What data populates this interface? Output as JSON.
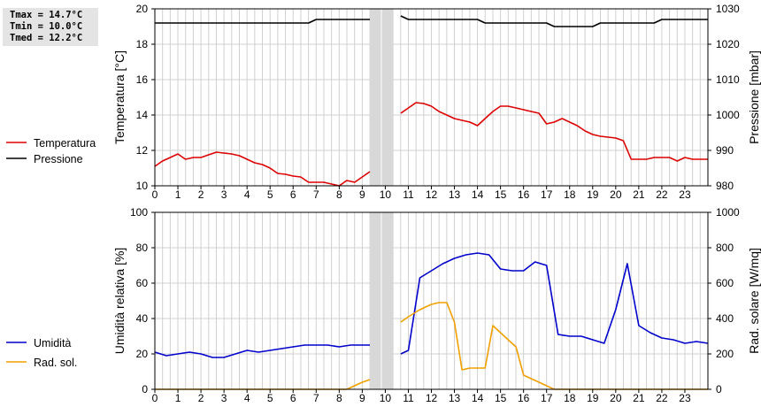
{
  "stats": {
    "tmax": "Tmax = 14.7°C",
    "tmin": "Tmin = 10.0°C",
    "tmed": "Tmed = 12.2°C"
  },
  "colors": {
    "temperature": "#dd0000",
    "pressure": "#000000",
    "humidity": "#0000cc",
    "radiation": "#f0a000",
    "gap": "#d8d8d8",
    "grid": "#d0d0d0"
  },
  "chart_data": [
    {
      "type": "line",
      "ylabel": "Temperatura [°C]",
      "y2label": "Pressione [mbar]",
      "xlim": [
        0,
        24
      ],
      "ylim": [
        10,
        20
      ],
      "y2lim": [
        980,
        1030
      ],
      "x_ticks": [
        "0",
        "1",
        "2",
        "3",
        "4",
        "5",
        "6",
        "7",
        "8",
        "9",
        "10",
        "11",
        "12",
        "13",
        "14",
        "15",
        "16",
        "17",
        "18",
        "19",
        "20",
        "21",
        "22",
        "23"
      ],
      "y_ticks": [
        "10",
        "12",
        "14",
        "16",
        "18",
        "20"
      ],
      "y2_ticks": [
        "980",
        "990",
        "1000",
        "1010",
        "1020",
        "1030"
      ],
      "gap": [
        9.33,
        10.33
      ],
      "series": [
        {
          "name": "Temperatura",
          "axis": "left",
          "segments": [
            [
              [
                0,
                11.1
              ],
              [
                0.33,
                11.4
              ],
              [
                0.67,
                11.6
              ],
              [
                1,
                11.8
              ],
              [
                1.33,
                11.5
              ],
              [
                1.67,
                11.6
              ],
              [
                2,
                11.6
              ],
              [
                2.33,
                11.75
              ],
              [
                2.67,
                11.9
              ],
              [
                3,
                11.85
              ],
              [
                3.33,
                11.8
              ],
              [
                3.67,
                11.7
              ],
              [
                4,
                11.5
              ],
              [
                4.33,
                11.3
              ],
              [
                4.67,
                11.2
              ],
              [
                5,
                11.0
              ],
              [
                5.33,
                10.7
              ],
              [
                5.67,
                10.65
              ],
              [
                6,
                10.55
              ],
              [
                6.33,
                10.5
              ],
              [
                6.67,
                10.2
              ],
              [
                7,
                10.2
              ],
              [
                7.33,
                10.2
              ],
              [
                7.67,
                10.1
              ],
              [
                8,
                10.0
              ],
              [
                8.33,
                10.3
              ],
              [
                8.67,
                10.2
              ],
              [
                9,
                10.5
              ],
              [
                9.33,
                10.8
              ]
            ],
            [
              [
                10.67,
                14.1
              ],
              [
                11.33,
                14.7
              ],
              [
                11.67,
                14.65
              ],
              [
                12,
                14.5
              ],
              [
                12.33,
                14.2
              ],
              [
                12.67,
                14.0
              ],
              [
                13,
                13.8
              ],
              [
                13.33,
                13.7
              ],
              [
                13.67,
                13.6
              ],
              [
                14,
                13.4
              ],
              [
                14.33,
                13.8
              ],
              [
                14.67,
                14.2
              ],
              [
                15,
                14.5
              ],
              [
                15.33,
                14.5
              ],
              [
                15.67,
                14.4
              ],
              [
                16,
                14.3
              ],
              [
                16.33,
                14.2
              ],
              [
                16.67,
                14.1
              ],
              [
                17,
                13.5
              ],
              [
                17.33,
                13.6
              ],
              [
                17.67,
                13.8
              ],
              [
                18,
                13.6
              ],
              [
                18.33,
                13.4
              ],
              [
                18.67,
                13.1
              ],
              [
                19,
                12.9
              ],
              [
                19.33,
                12.8
              ],
              [
                19.67,
                12.75
              ],
              [
                20,
                12.7
              ],
              [
                20.33,
                12.55
              ],
              [
                20.67,
                11.5
              ],
              [
                21,
                11.5
              ],
              [
                21.33,
                11.5
              ],
              [
                21.67,
                11.6
              ],
              [
                22,
                11.6
              ],
              [
                22.33,
                11.6
              ],
              [
                22.67,
                11.4
              ],
              [
                23,
                11.6
              ],
              [
                23.33,
                11.5
              ],
              [
                23.67,
                11.5
              ],
              [
                24,
                11.5
              ]
            ]
          ]
        },
        {
          "name": "Pressione",
          "axis": "right",
          "segments": [
            [
              [
                0,
                1026
              ],
              [
                6.67,
                1026
              ],
              [
                7,
                1027
              ],
              [
                9.33,
                1027
              ]
            ],
            [
              [
                10.67,
                1028
              ],
              [
                11,
                1027
              ],
              [
                14,
                1027
              ],
              [
                14.33,
                1026
              ],
              [
                17,
                1026
              ],
              [
                17.33,
                1025
              ],
              [
                19,
                1025
              ],
              [
                19.33,
                1026
              ],
              [
                21.67,
                1026
              ],
              [
                22,
                1027
              ],
              [
                24,
                1027
              ]
            ]
          ]
        }
      ],
      "legend": [
        {
          "name": "Temperatura"
        },
        {
          "name": "Pressione"
        }
      ]
    },
    {
      "type": "line",
      "ylabel": "Umidità relativa [%]",
      "y2label": "Rad. solare [W/mq]",
      "xlim": [
        0,
        24
      ],
      "ylim": [
        0,
        100
      ],
      "y2lim": [
        0,
        1000
      ],
      "x_ticks": [
        "0",
        "1",
        "2",
        "3",
        "4",
        "5",
        "6",
        "7",
        "8",
        "9",
        "10",
        "11",
        "12",
        "13",
        "14",
        "15",
        "16",
        "17",
        "18",
        "19",
        "20",
        "21",
        "22",
        "23"
      ],
      "y_ticks": [
        "0",
        "20",
        "40",
        "60",
        "80",
        "100"
      ],
      "y2_ticks": [
        "0",
        "200",
        "400",
        "600",
        "800",
        "1000"
      ],
      "gap": [
        9.33,
        10.33
      ],
      "series": [
        {
          "name": "Umidità",
          "axis": "left",
          "segments": [
            [
              [
                0,
                21
              ],
              [
                0.5,
                19
              ],
              [
                1,
                20
              ],
              [
                1.5,
                21
              ],
              [
                2,
                20
              ],
              [
                2.5,
                18
              ],
              [
                3,
                18
              ],
              [
                3.5,
                20
              ],
              [
                4,
                22
              ],
              [
                4.5,
                21
              ],
              [
                5,
                22
              ],
              [
                5.5,
                23
              ],
              [
                6,
                24
              ],
              [
                6.5,
                25
              ],
              [
                7,
                25
              ],
              [
                7.5,
                25
              ],
              [
                8,
                24
              ],
              [
                8.5,
                25
              ],
              [
                9.33,
                25
              ]
            ],
            [
              [
                10.67,
                20
              ],
              [
                11,
                22
              ],
              [
                11.5,
                63
              ],
              [
                12,
                67
              ],
              [
                12.5,
                71
              ],
              [
                13,
                74
              ],
              [
                13.5,
                76
              ],
              [
                14,
                77
              ],
              [
                14.5,
                76
              ],
              [
                15,
                68
              ],
              [
                15.5,
                67
              ],
              [
                16,
                67
              ],
              [
                16.5,
                72
              ],
              [
                17,
                70
              ],
              [
                17.5,
                31
              ],
              [
                18,
                30
              ],
              [
                18.5,
                30
              ],
              [
                19,
                28
              ],
              [
                19.5,
                26
              ],
              [
                20,
                45
              ],
              [
                20.5,
                71
              ],
              [
                21,
                36
              ],
              [
                21.5,
                32
              ],
              [
                22,
                29
              ],
              [
                22.5,
                28
              ],
              [
                23,
                26
              ],
              [
                23.5,
                27
              ],
              [
                24,
                26
              ]
            ]
          ]
        },
        {
          "name": "Rad. sol.",
          "axis": "right",
          "segments": [
            [
              [
                0,
                0
              ],
              [
                8.33,
                0
              ],
              [
                9,
                40
              ],
              [
                9.33,
                55
              ]
            ],
            [
              [
                10.67,
                380
              ],
              [
                11,
                410
              ],
              [
                11.5,
                450
              ],
              [
                12,
                480
              ],
              [
                12.33,
                490
              ],
              [
                12.67,
                490
              ],
              [
                13,
                380
              ],
              [
                13.33,
                110
              ],
              [
                13.67,
                120
              ],
              [
                14,
                120
              ],
              [
                14.33,
                120
              ],
              [
                14.67,
                360
              ],
              [
                15,
                320
              ],
              [
                15.33,
                280
              ],
              [
                15.67,
                240
              ],
              [
                16,
                80
              ],
              [
                16.67,
                40
              ],
              [
                17.33,
                0
              ],
              [
                24,
                0
              ]
            ]
          ]
        }
      ],
      "legend": [
        {
          "name": "Umidità"
        },
        {
          "name": "Rad. sol."
        }
      ]
    }
  ]
}
